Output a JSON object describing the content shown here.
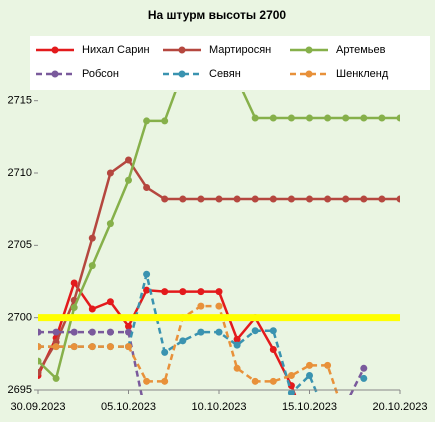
{
  "chart_data": {
    "type": "line",
    "title": "На штурм  высоты 2700",
    "x": [
      "2023-09-30",
      "2023-10-01",
      "2023-10-02",
      "2023-10-03",
      "2023-10-04",
      "2023-10-05",
      "2023-10-06",
      "2023-10-07",
      "2023-10-08",
      "2023-10-09",
      "2023-10-10",
      "2023-10-11",
      "2023-10-12",
      "2023-10-13",
      "2023-10-14",
      "2023-10-15",
      "2023-10-16",
      "2023-10-17",
      "2023-10-18",
      "2023-10-19",
      "2023-10-20"
    ],
    "xlim": [
      "2023-09-30",
      "2023-10-20"
    ],
    "xticks": [
      {
        "value": "2023-09-30",
        "label": "30.09.2023"
      },
      {
        "value": "2023-10-05",
        "label": "05.10.2023"
      },
      {
        "value": "2023-10-10",
        "label": "10.10.2023"
      },
      {
        "value": "2023-10-15",
        "label": "15.10.2023"
      },
      {
        "value": "2023-10-20",
        "label": "20.10.2023"
      }
    ],
    "ylim": [
      2695,
      2715.6
    ],
    "yticks": [
      2695,
      2700,
      2705,
      2710,
      2715
    ],
    "reference_line": {
      "value": 2700,
      "color": "#ffff00"
    },
    "series": [
      {
        "name": "Нихал Сарин",
        "color": "#e31a1c",
        "dash": false,
        "values": [
          2696,
          2698.6,
          2702.4,
          2700.6,
          2701.1,
          2699.4,
          2701.9,
          2701.8,
          2701.8,
          2701.8,
          2701.8,
          2698.5,
          2700,
          2697.8,
          2695.3,
          2692,
          null,
          null,
          null,
          null,
          null
        ]
      },
      {
        "name": "Мартиросян",
        "color": "#b5473f",
        "dash": false,
        "values": [
          2696.2,
          2698.3,
          2701.2,
          2705.5,
          2710,
          2710.9,
          2709,
          2708.2,
          2708.2,
          2708.2,
          2708.2,
          2708.2,
          2708.2,
          2708.2,
          2708.2,
          2708.2,
          2708.2,
          2708.2,
          2708.2,
          2708.2,
          2708.2
        ]
      },
      {
        "name": "Артемьев",
        "color": "#86b04a",
        "dash": false,
        "values": [
          2697,
          2695.8,
          2700.7,
          2703.6,
          2706.5,
          2709.5,
          2713.6,
          2713.6,
          2717,
          2718,
          2718,
          2716.5,
          2713.8,
          2713.8,
          2713.8,
          2713.8,
          2713.8,
          2713.8,
          2713.8,
          2713.8,
          2713.8
        ]
      },
      {
        "name": "Робсон",
        "color": "#7a5a9c",
        "dash": true,
        "values": [
          2699,
          2699,
          2699,
          2699,
          2699,
          2699,
          2693,
          null,
          null,
          null,
          null,
          null,
          null,
          null,
          null,
          null,
          null,
          2694,
          2696.5,
          null,
          null
        ]
      },
      {
        "name": "Севян",
        "color": "#3a93b0",
        "dash": true,
        "values": [
          2698,
          2698,
          2698,
          2698,
          2698,
          2698,
          2703,
          2697.6,
          2698.4,
          2699,
          2699,
          2698.1,
          2699.1,
          2699.1,
          2694.8,
          2696,
          2693,
          null,
          2695.8,
          null,
          null
        ]
      },
      {
        "name": "Шенкленд",
        "color": "#e8913a",
        "dash": true,
        "values": [
          2698,
          2698,
          2698,
          2698,
          2698,
          2698,
          2695.6,
          2695.6,
          2700,
          2700.8,
          2700.8,
          2696.5,
          2695.6,
          2695.6,
          2696,
          2696.7,
          2696.7,
          2693,
          null,
          null,
          null
        ]
      }
    ]
  }
}
